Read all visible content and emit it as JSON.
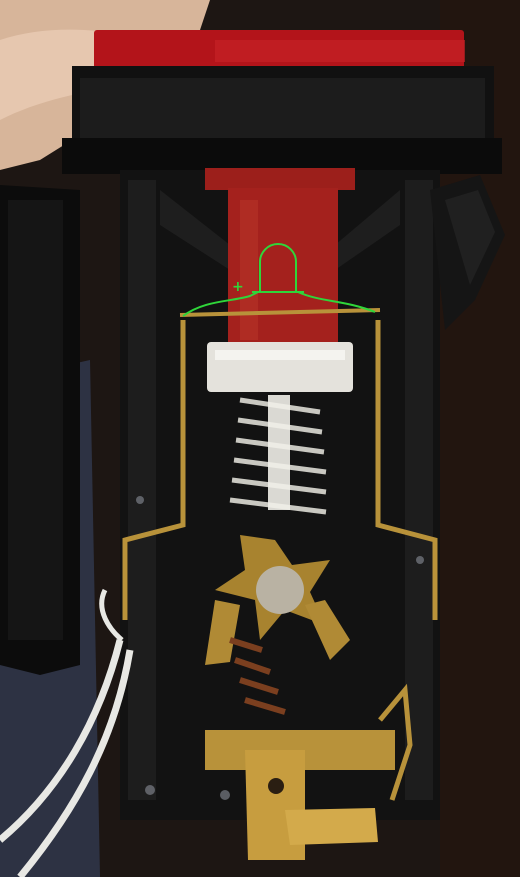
{
  "photo": {
    "subject": "switch-cutaway",
    "colors": {
      "background_dark": "#1c1512",
      "housing_black": "#141414",
      "cap_red": "#b4141a",
      "plunger_red": "#a7211d",
      "brass": "#b8923a",
      "spring_silver": "#c8c7c0",
      "copper_spring": "#7a3d1e",
      "wire_white": "#e9e9e6",
      "led_outline_green": "#2fd63a",
      "skin": "#e4c2a8"
    }
  },
  "annotation": {
    "plus_sign": "+"
  }
}
